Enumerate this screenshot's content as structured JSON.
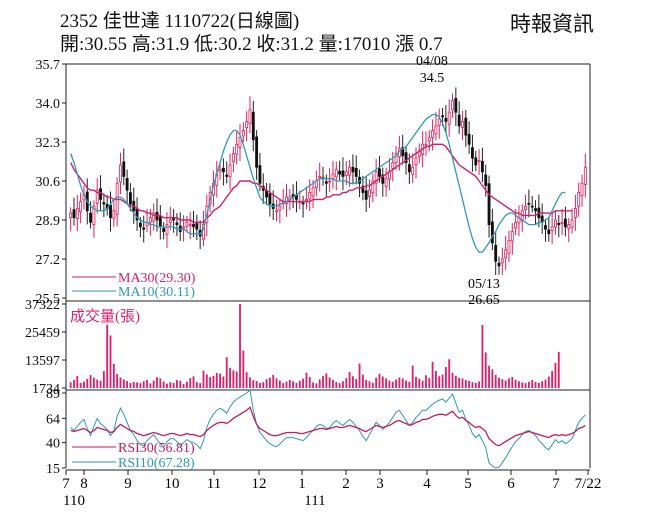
{
  "header": {
    "title": "2352  佳世達 1110722(日線圖)",
    "quote": "開:30.55 高:31.9 低:30.2 收:31.2 量:17010 漲 0.7",
    "source": "時報資訊"
  },
  "colors": {
    "candle": "#e0205a",
    "ma30": "#d61f69",
    "ma10": "#2e9ab8",
    "rsi30": "#c61a5a",
    "rsi10": "#2e9ab8",
    "volume": "#e01e6a",
    "axis": "#222222"
  },
  "chart_data": [
    {
      "type": "candlestick",
      "panel": "price",
      "yticks": [
        "35.7",
        "34.0",
        "32.3",
        "30.6",
        "28.9",
        "27.2",
        "25.5"
      ],
      "ylim": [
        25.5,
        35.7
      ],
      "annotations": [
        {
          "date": "04/08",
          "value": "34.5"
        },
        {
          "date": "05/13",
          "value": "26.65"
        }
      ],
      "legend": [
        {
          "label": "MA30(29.30)",
          "series": "ma30"
        },
        {
          "label": "MA10(30.11)",
          "series": "ma10"
        }
      ],
      "close": [
        29.2,
        29.0,
        29.4,
        29.7,
        30.0,
        29.3,
        28.8,
        29.5,
        30.2,
        29.8,
        29.6,
        29.4,
        29.0,
        29.3,
        30.5,
        31.3,
        30.8,
        30.2,
        29.6,
        29.3,
        28.9,
        28.6,
        28.5,
        28.8,
        29.0,
        29.2,
        28.9,
        28.6,
        28.4,
        28.7,
        28.9,
        28.9,
        28.7,
        28.4,
        28.6,
        28.8,
        28.7,
        28.6,
        28.5,
        28.2,
        28.7,
        29.5,
        30.1,
        30.5,
        30.9,
        31.1,
        31.0,
        30.8,
        31.3,
        31.8,
        32.2,
        32.5,
        32.8,
        33.2,
        33.7,
        32.4,
        31.2,
        30.5,
        30.2,
        29.9,
        29.6,
        29.4,
        29.3,
        29.5,
        29.7,
        29.9,
        29.9,
        29.9,
        29.8,
        29.7,
        29.6,
        29.8,
        30.1,
        30.3,
        30.6,
        30.8,
        30.7,
        30.5,
        30.6,
        30.9,
        31.1,
        30.9,
        30.8,
        31.0,
        31.2,
        31.0,
        30.8,
        30.5,
        30.1,
        29.8,
        30.2,
        30.6,
        31.0,
        30.8,
        30.5,
        30.7,
        31.0,
        31.4,
        31.8,
        32.0,
        31.7,
        31.4,
        31.0,
        31.2,
        31.6,
        31.9,
        32.2,
        32.2,
        32.5,
        32.8,
        33.0,
        33.3,
        33.4,
        33.2,
        33.6,
        34.1,
        33.6,
        33.0,
        33.2,
        32.6,
        32.2,
        31.6,
        31.3,
        31.5,
        31.0,
        30.4,
        28.7,
        27.9,
        27.1,
        26.9,
        27.2,
        27.6,
        28.0,
        28.4,
        28.8,
        29.0,
        29.3,
        29.5,
        29.6,
        29.5,
        29.3,
        29.0,
        28.8,
        28.5,
        28.3,
        28.6,
        28.9,
        28.7,
        28.8,
        28.6,
        28.7,
        28.9,
        29.4,
        30.1,
        30.5,
        31.2
      ],
      "ma30": [
        31.4,
        31.1,
        30.9,
        30.7,
        30.5,
        30.3,
        30.2,
        30.2,
        30.1,
        30.1,
        30.0,
        29.9,
        29.9,
        29.8,
        29.8,
        29.8,
        29.7,
        29.6,
        29.5,
        29.5,
        29.4,
        29.3,
        29.3,
        29.2,
        29.2,
        29.1,
        29.1,
        29.1,
        29.0,
        29.0,
        29.0,
        29.0,
        29.0,
        28.9,
        28.9,
        28.9,
        28.9,
        28.8,
        28.8,
        28.8,
        28.8,
        29.0,
        29.1,
        29.3,
        29.4,
        29.5,
        29.7,
        29.9,
        30.1,
        30.3,
        30.4,
        30.6,
        30.6,
        30.6,
        30.6,
        30.5,
        30.5,
        30.4,
        30.3,
        30.2,
        30.1,
        30.0,
        29.9,
        29.8,
        29.7,
        29.7,
        29.7,
        29.7,
        29.7,
        29.7,
        29.7,
        29.7,
        29.7,
        29.8,
        29.8,
        29.8,
        29.8,
        29.9,
        29.9,
        30.0,
        30.0,
        30.0,
        30.1,
        30.1,
        30.2,
        30.2,
        30.3,
        30.3,
        30.3,
        30.4,
        30.4,
        30.5,
        30.6,
        30.7,
        30.8,
        30.9,
        31.0,
        31.1,
        31.2,
        31.3,
        31.4,
        31.5,
        31.6,
        31.7,
        31.8,
        31.9,
        32.0,
        32.1,
        32.1,
        32.2,
        32.2,
        32.2,
        32.2,
        32.1,
        31.9,
        31.7,
        31.5,
        31.3,
        31.2,
        31.1,
        31.0,
        30.9,
        30.8,
        30.6,
        30.4,
        30.2,
        30.0,
        29.9,
        29.8,
        29.7,
        29.6,
        29.5,
        29.4,
        29.3,
        29.2,
        29.2,
        29.1,
        29.1,
        29.1,
        29.1,
        29.1,
        29.2,
        29.2,
        29.2,
        29.2,
        29.2,
        29.3,
        29.3,
        29.3,
        29.3,
        29.3,
        29.3
      ],
      "ma10": [
        31.8,
        31.4,
        30.9,
        30.4,
        30.0,
        29.7,
        29.5,
        29.4,
        29.3,
        29.3,
        29.3,
        29.4,
        29.6,
        29.8,
        29.9,
        29.9,
        29.8,
        29.6,
        29.4,
        29.2,
        29.0,
        28.9,
        28.8,
        28.8,
        28.7,
        28.7,
        28.6,
        28.6,
        28.6,
        28.6,
        28.6,
        28.6,
        28.5,
        28.5,
        28.5,
        28.4,
        28.3,
        28.3,
        28.3,
        28.3,
        28.5,
        29.1,
        29.8,
        30.4,
        30.9,
        31.4,
        31.9,
        32.3,
        32.6,
        32.8,
        32.8,
        32.6,
        32.2,
        31.7,
        31.2,
        30.7,
        30.3,
        29.9,
        29.7,
        29.6,
        29.5,
        29.5,
        29.5,
        29.6,
        29.6,
        29.7,
        29.8,
        29.9,
        30.0,
        30.1,
        30.2,
        30.3,
        30.4,
        30.5,
        30.6,
        30.7,
        30.7,
        30.7,
        30.7,
        30.7,
        30.6,
        30.6,
        30.6,
        30.6,
        30.5,
        30.5,
        30.5,
        30.6,
        30.7,
        30.8,
        30.9,
        31.0,
        31.1,
        31.2,
        31.3,
        31.4,
        31.5,
        31.6,
        31.7,
        31.9,
        32.0,
        32.1,
        32.3,
        32.5,
        32.7,
        32.9,
        33.1,
        33.3,
        33.4,
        33.5,
        33.5,
        33.4,
        33.1,
        32.7,
        32.2,
        31.6,
        31.0,
        30.4,
        29.8,
        29.2,
        28.6,
        28.1,
        27.7,
        27.5,
        27.5,
        27.7,
        27.9,
        28.2,
        28.4,
        28.7,
        28.9,
        29.1,
        29.2,
        29.2,
        29.1,
        29.0,
        28.9,
        28.8,
        28.7,
        28.7,
        28.7,
        28.8,
        28.8,
        28.9,
        29.0,
        29.3,
        29.6,
        29.9,
        30.1,
        30.1
      ]
    },
    {
      "type": "bar",
      "panel": "volume",
      "title": "成交量(張)",
      "yticks": [
        "37322",
        "25459",
        "13597",
        "1734"
      ],
      "ylim": [
        1734,
        37322
      ],
      "values": [
        4200,
        5100,
        6800,
        3900,
        4500,
        5600,
        7200,
        6100,
        5300,
        4800,
        8900,
        28500,
        24000,
        12000,
        7600,
        6200,
        5400,
        4700,
        3900,
        4300,
        4100,
        3800,
        4600,
        5200,
        3700,
        4900,
        6300,
        5800,
        4500,
        3600,
        4200,
        3900,
        5100,
        4800,
        3500,
        4400,
        5900,
        6700,
        4200,
        3800,
        9100,
        7500,
        6400,
        6900,
        8100,
        7800,
        6600,
        14800,
        10300,
        9200,
        8700,
        37322,
        17600,
        8400,
        6200,
        5100,
        4700,
        3900,
        4200,
        5500,
        6100,
        7300,
        5800,
        4900,
        3800,
        4400,
        5200,
        4600,
        3900,
        4800,
        5700,
        8200,
        6400,
        4100,
        3700,
        5400,
        6800,
        7900,
        6200,
        5100,
        4300,
        3800,
        4600,
        5900,
        8500,
        6700,
        5500,
        12100,
        7400,
        5200,
        4600,
        3900,
        6100,
        7800,
        6600,
        5800,
        4900,
        4400,
        5300,
        6200,
        5800,
        4900,
        4300,
        11200,
        6500,
        5700,
        4800,
        7100,
        5900,
        12800,
        8900,
        6700,
        7400,
        10600,
        13900,
        8200,
        6900,
        6100,
        5800,
        5100,
        4700,
        4200,
        3900,
        4500,
        28400,
        16800,
        11200,
        9600,
        7300,
        6100,
        5500,
        4900,
        5800,
        6400,
        5200,
        4600,
        4100,
        3800,
        4400,
        5100,
        4300,
        3900,
        4600,
        5300,
        6600,
        8900,
        12400,
        17010
      ]
    },
    {
      "type": "line",
      "panel": "rsi",
      "yticks": [
        "89",
        "64",
        "40",
        "15"
      ],
      "ylim": [
        15,
        89
      ],
      "legend": [
        {
          "label": "RSI30(56.81)",
          "series": "rsi30"
        },
        {
          "label": "RSI10(67.28)",
          "series": "rsi10"
        }
      ],
      "rsi30": [
        52,
        51,
        52,
        53,
        54,
        52,
        50,
        52,
        55,
        54,
        53,
        52,
        50,
        51,
        55,
        58,
        56,
        54,
        52,
        51,
        49,
        48,
        47,
        48,
        49,
        50,
        49,
        48,
        47,
        48,
        49,
        49,
        48,
        47,
        48,
        49,
        48,
        48,
        47,
        46,
        48,
        52,
        55,
        57,
        59,
        60,
        60,
        59,
        61,
        64,
        66,
        68,
        70,
        72,
        75,
        66,
        58,
        54,
        52,
        50,
        48,
        47,
        47,
        48,
        49,
        50,
        50,
        50,
        50,
        49,
        49,
        50,
        51,
        52,
        53,
        54,
        54,
        53,
        54,
        55,
        56,
        55,
        55,
        56,
        57,
        56,
        55,
        54,
        52,
        51,
        53,
        55,
        57,
        56,
        55,
        56,
        57,
        59,
        61,
        62,
        60,
        59,
        57,
        58,
        60,
        61,
        63,
        63,
        64,
        66,
        67,
        68,
        68,
        67,
        69,
        71,
        67,
        64,
        65,
        62,
        60,
        57,
        55,
        56,
        54,
        51,
        44,
        41,
        38,
        37,
        39,
        41,
        43,
        45,
        47,
        48,
        49,
        50,
        51,
        50,
        49,
        48,
        47,
        46,
        45,
        47,
        48,
        47,
        48,
        47,
        48,
        49,
        51,
        54,
        55,
        56.81
      ],
      "rsi10": [
        55,
        52,
        56,
        60,
        63,
        54,
        47,
        56,
        64,
        59,
        56,
        53,
        47,
        51,
        66,
        74,
        68,
        60,
        52,
        48,
        42,
        38,
        37,
        42,
        45,
        48,
        43,
        39,
        36,
        41,
        44,
        44,
        41,
        37,
        40,
        43,
        41,
        40,
        38,
        34,
        42,
        55,
        63,
        68,
        72,
        74,
        72,
        69,
        75,
        80,
        83,
        85,
        87,
        89,
        92,
        72,
        58,
        50,
        46,
        42,
        39,
        37,
        36,
        39,
        42,
        45,
        45,
        45,
        44,
        43,
        42,
        45,
        49,
        52,
        56,
        58,
        57,
        54,
        55,
        59,
        62,
        59,
        57,
        60,
        63,
        60,
        56,
        52,
        46,
        42,
        48,
        54,
        60,
        57,
        53,
        56,
        60,
        65,
        70,
        72,
        67,
        62,
        57,
        60,
        65,
        68,
        72,
        72,
        75,
        78,
        80,
        82,
        83,
        80,
        84,
        88,
        79,
        70,
        72,
        63,
        57,
        49,
        45,
        48,
        42,
        35,
        20,
        17,
        15,
        16,
        20,
        25,
        31,
        36,
        41,
        44,
        48,
        51,
        52,
        50,
        47,
        42,
        39,
        35,
        33,
        38,
        43,
        40,
        42,
        39,
        41,
        44,
        52,
        60,
        64,
        67.28
      ]
    }
  ],
  "xaxis": {
    "months": [
      "7",
      "8",
      "9",
      "10",
      "11",
      "12",
      "1",
      "2",
      "3",
      "4",
      "5",
      "6",
      "7",
      "7/22"
    ],
    "years": [
      "110",
      "111"
    ]
  }
}
